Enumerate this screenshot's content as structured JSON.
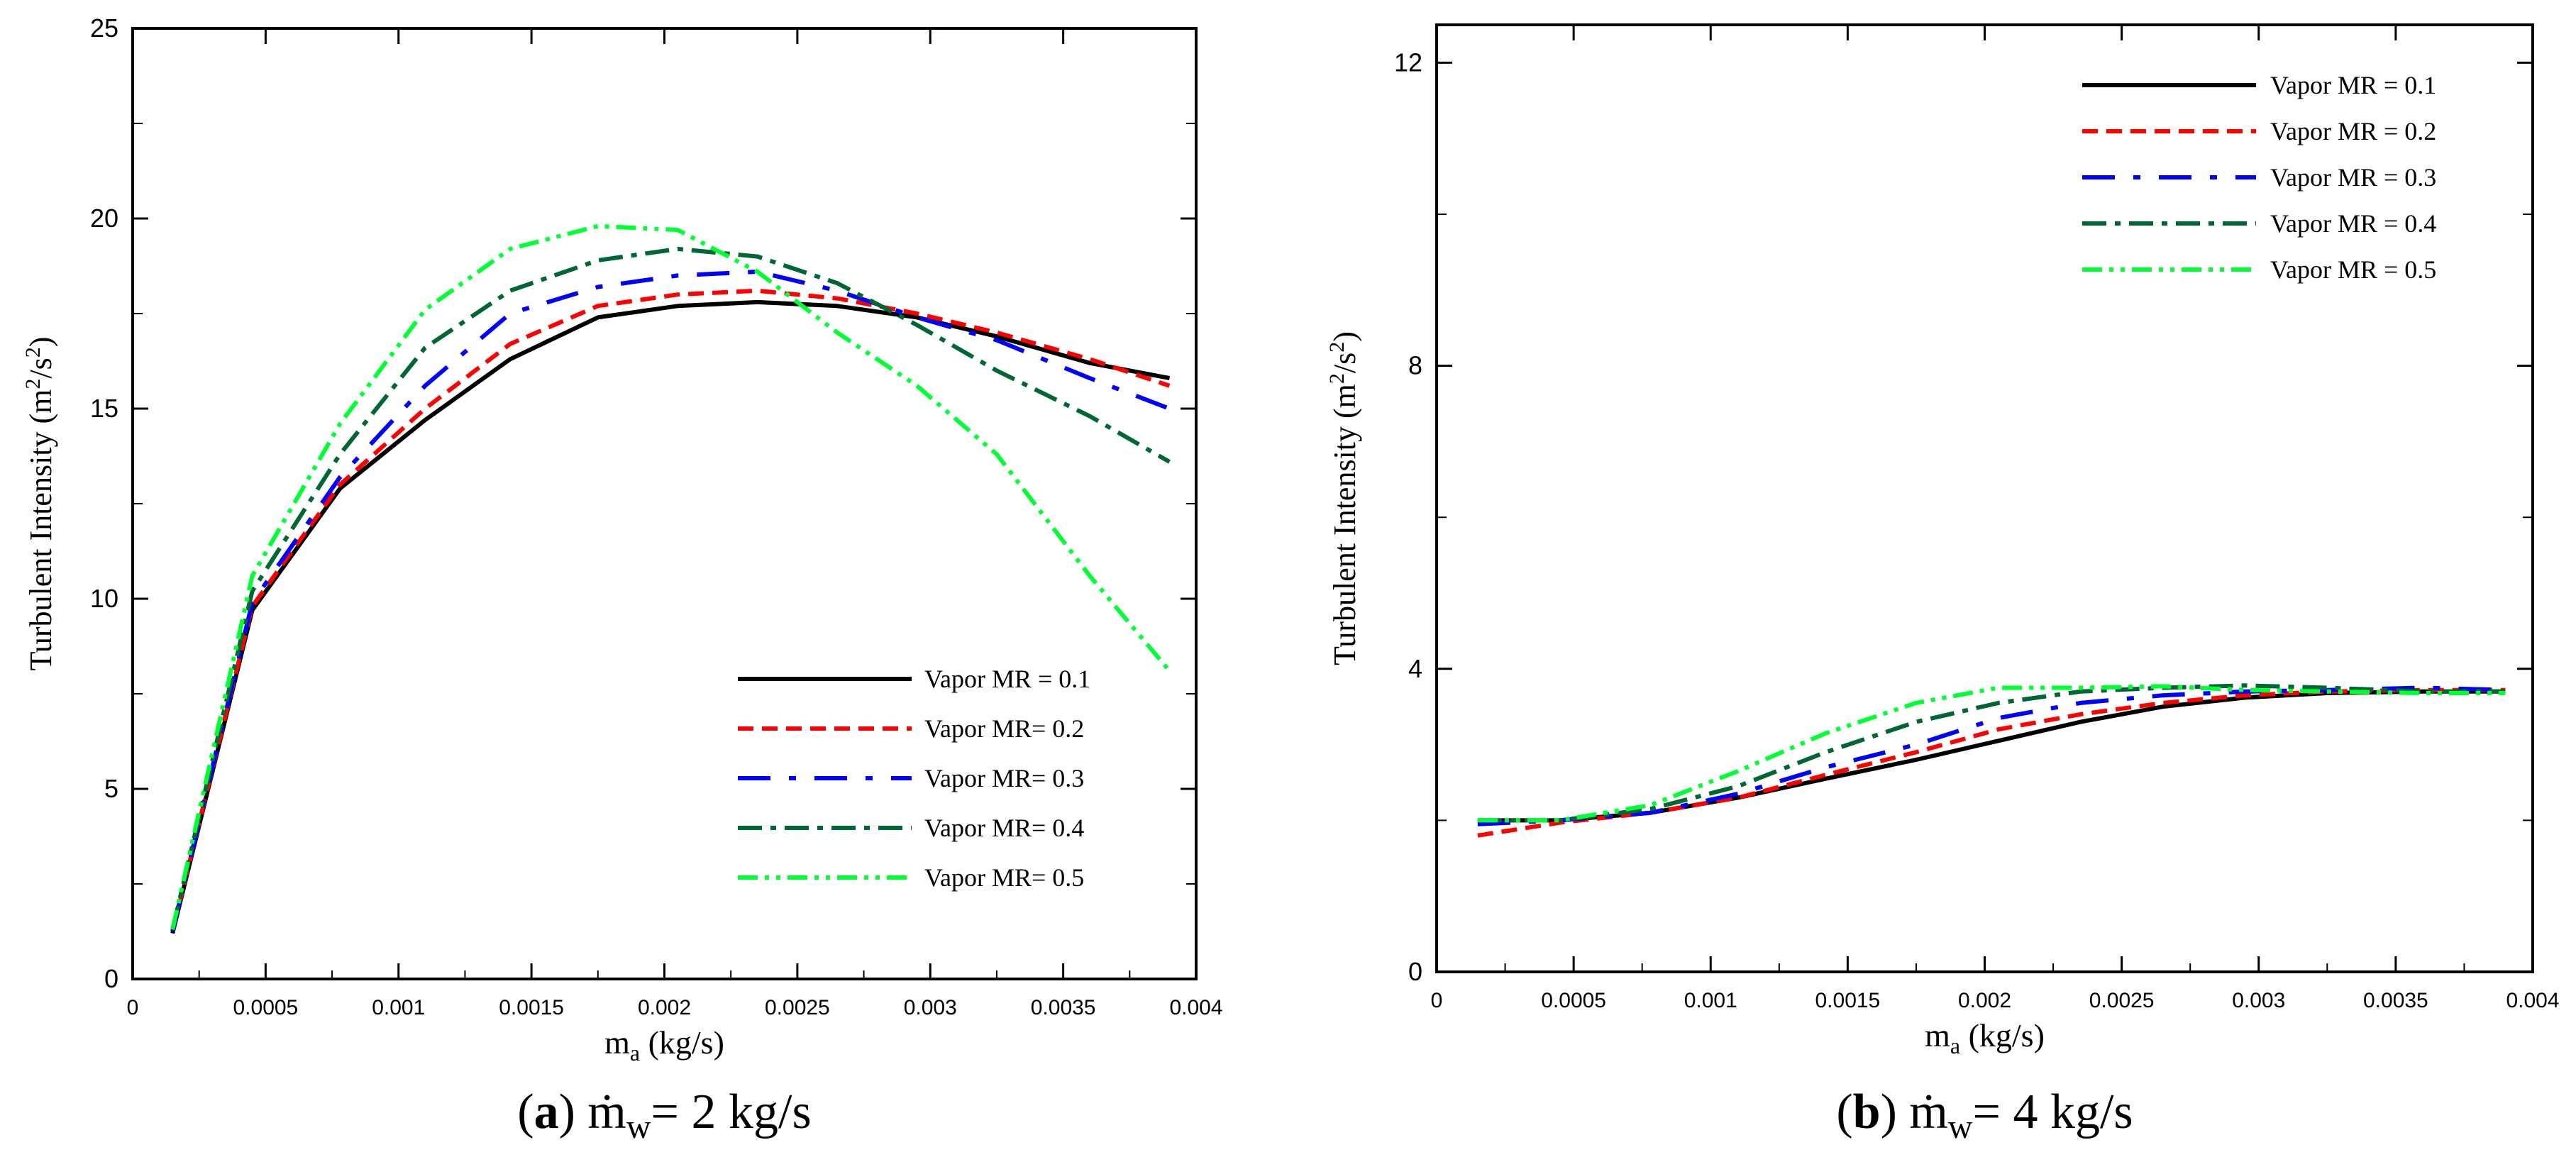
{
  "series_colors": [
    "#000000",
    "#ff0000",
    "#0000ff",
    "#006633",
    "#00ff33"
  ],
  "chart_data": [
    {
      "type": "line",
      "panel": "a",
      "caption": {
        "letter": "a",
        "m": "m",
        "dot": "̇",
        "sub": "w",
        "text": "= 2 kg/s"
      },
      "xlabel": {
        "m": "m",
        "sub": "a",
        "unit": " (kg/s)"
      },
      "ylabel": {
        "t1": "Turbulent Intensity (m",
        "sup1": "2",
        "t2": "/s",
        "sup2": "2",
        "t3": ")"
      },
      "xlim": [
        0,
        0.004
      ],
      "ylim": [
        0,
        25
      ],
      "xticks": [
        "0",
        "0.0005",
        "0.001",
        "0.0015",
        "0.002",
        "0.0025",
        "0.003",
        "0.0035",
        "0.004"
      ],
      "yticks": [
        "0",
        "5",
        "10",
        "15",
        "20",
        "25"
      ],
      "legend_position": "bottom-right",
      "x": [
        0.00015,
        0.00045,
        0.00078,
        0.0011,
        0.00142,
        0.00175,
        0.00205,
        0.00235,
        0.00265,
        0.00295,
        0.00325,
        0.0036,
        0.0039
      ],
      "series": [
        {
          "name": "Vapor MR = 0.1",
          "values": [
            1.2,
            9.7,
            12.9,
            14.7,
            16.3,
            17.4,
            17.7,
            17.8,
            17.7,
            17.4,
            16.9,
            16.2,
            15.8
          ]
        },
        {
          "name": "Vapor MR= 0.2",
          "values": [
            1.25,
            9.8,
            13.0,
            15.0,
            16.7,
            17.7,
            18.0,
            18.1,
            17.9,
            17.5,
            17.0,
            16.3,
            15.6
          ]
        },
        {
          "name": "Vapor MR= 0.3",
          "values": [
            1.25,
            9.9,
            13.2,
            15.6,
            17.5,
            18.2,
            18.5,
            18.6,
            18.1,
            17.4,
            16.8,
            15.8,
            15.0
          ]
        },
        {
          "name": "Vapor MR= 0.4",
          "values": [
            1.3,
            10.2,
            13.8,
            16.6,
            18.1,
            18.9,
            19.2,
            19.0,
            18.3,
            17.2,
            16.0,
            14.8,
            13.6
          ]
        },
        {
          "name": "Vapor MR= 0.5",
          "values": [
            1.3,
            10.6,
            14.6,
            17.6,
            19.2,
            19.8,
            19.7,
            18.6,
            17.0,
            15.6,
            13.8,
            10.6,
            8.1
          ]
        }
      ]
    },
    {
      "type": "line",
      "panel": "b",
      "caption": {
        "letter": "b",
        "m": "m",
        "dot": "̇",
        "sub": "w",
        "text": "= 4 kg/s"
      },
      "xlabel": {
        "m": "m",
        "sub": "a",
        "unit": " (kg/s)"
      },
      "ylabel": {
        "t1": "Turbulent Intensity (m",
        "sup1": "2",
        "t2": "/s",
        "sup2": "2",
        "t3": ")"
      },
      "xlim": [
        0,
        0.004
      ],
      "ylim": [
        0,
        12.5
      ],
      "xticks": [
        "0",
        "0.0005",
        "0.001",
        "0.0015",
        "0.002",
        "0.0025",
        "0.003",
        "0.0035",
        "0.004"
      ],
      "yticks": [
        "0",
        "4",
        "8",
        "12"
      ],
      "legend_position": "top-right",
      "x": [
        0.00015,
        0.00045,
        0.00078,
        0.0011,
        0.00142,
        0.00175,
        0.00205,
        0.00235,
        0.00265,
        0.00295,
        0.00325,
        0.0036,
        0.0039
      ],
      "series": [
        {
          "name": "Vapor MR = 0.1",
          "values": [
            2.0,
            2.0,
            2.1,
            2.3,
            2.55,
            2.8,
            3.05,
            3.3,
            3.5,
            3.62,
            3.68,
            3.7,
            3.7
          ]
        },
        {
          "name": "Vapor MR = 0.2",
          "values": [
            1.8,
            1.97,
            2.1,
            2.3,
            2.6,
            2.9,
            3.2,
            3.4,
            3.55,
            3.65,
            3.7,
            3.72,
            3.72
          ]
        },
        {
          "name": "Vapor MR = 0.3",
          "values": [
            1.95,
            2.0,
            2.1,
            2.35,
            2.7,
            3.0,
            3.35,
            3.55,
            3.65,
            3.7,
            3.72,
            3.75,
            3.72
          ]
        },
        {
          "name": "Vapor MR = 0.4",
          "values": [
            2.0,
            2.0,
            2.15,
            2.45,
            2.9,
            3.3,
            3.55,
            3.7,
            3.75,
            3.78,
            3.75,
            3.7,
            3.7
          ]
        },
        {
          "name": "Vapor MR = 0.5",
          "values": [
            2.0,
            2.0,
            2.2,
            2.65,
            3.15,
            3.55,
            3.75,
            3.75,
            3.77,
            3.72,
            3.7,
            3.68,
            3.68
          ]
        }
      ]
    }
  ]
}
